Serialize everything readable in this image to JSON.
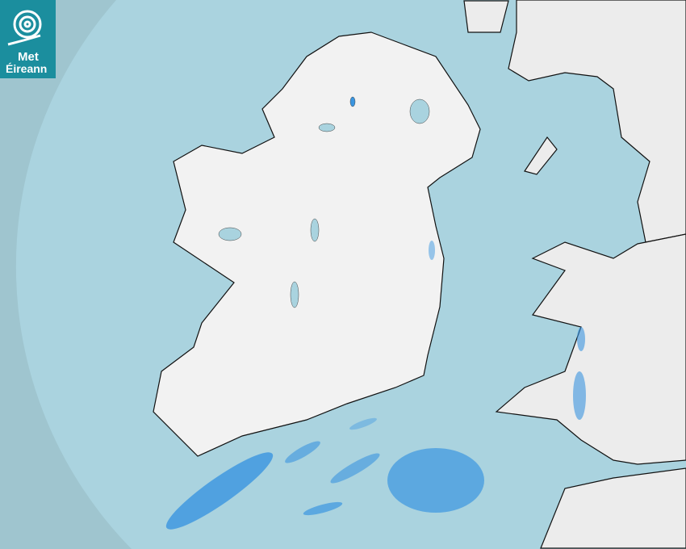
{
  "brand": {
    "line1": "Met",
    "line2": "Éireann",
    "color": "#1b8e9e"
  },
  "map": {
    "type": "rainfall radar",
    "colors": {
      "outside_coverage": "#9fc5cf",
      "sea": "#aad3df",
      "land": "#f0f0f0",
      "rain_light": "#7fbff0",
      "rain_moderate": "#3a95e0",
      "lakes": "#a9d3df"
    }
  }
}
